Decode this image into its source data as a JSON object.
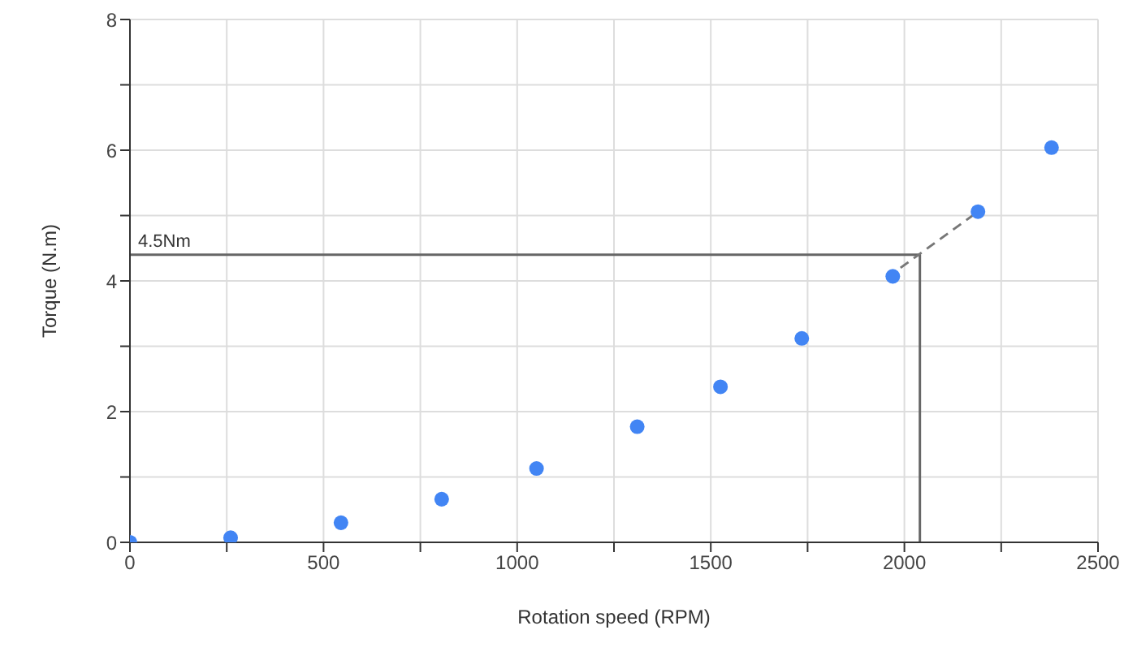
{
  "chart_data": {
    "type": "scatter",
    "xlabel": "Rotation speed (RPM)",
    "ylabel": "Torque (N.m)",
    "xlim": [
      0,
      2500
    ],
    "ylim": [
      0,
      8
    ],
    "xticks": [
      0,
      {
        "value": 250,
        "label": null
      },
      500,
      {
        "value": 750,
        "label": null
      },
      1000,
      {
        "value": 1250,
        "label": null
      },
      1500,
      {
        "value": 1750,
        "label": null
      },
      2000,
      {
        "value": 2250,
        "label": null
      },
      2500
    ],
    "yticks": [
      0,
      {
        "value": 1,
        "label": null
      },
      2,
      {
        "value": 3,
        "label": null
      },
      4,
      {
        "value": 5,
        "label": null
      },
      6,
      {
        "value": 7,
        "label": null
      },
      8
    ],
    "grid": true,
    "legend": false,
    "series": [
      {
        "marker": "circle",
        "color": "#4285f4",
        "x": [
          0,
          260,
          545,
          805,
          1050,
          1310,
          1525,
          1735,
          1970,
          2190,
          2380
        ],
        "values": [
          0,
          0.07,
          0.3,
          0.66,
          1.13,
          1.77,
          2.38,
          3.12,
          4.07,
          5.06,
          6.04
        ]
      },
      {
        "type": "line",
        "marker": "none",
        "line_style": "solid",
        "color": "#666666",
        "x": [
          0,
          2040,
          2040
        ],
        "values": [
          4.4,
          4.4,
          0
        ]
      },
      {
        "type": "line",
        "marker": "none",
        "line_style": "dashed",
        "color": "#777777",
        "x": [
          1990,
          2190
        ],
        "values": [
          4.2,
          5.06
        ]
      }
    ],
    "annotations": [
      {
        "text": "4.5Nm",
        "x": 0,
        "y": 4.4
      }
    ]
  }
}
